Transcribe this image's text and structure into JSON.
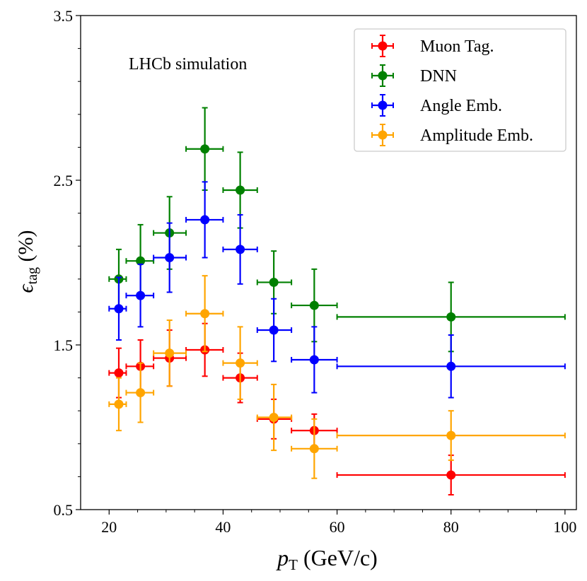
{
  "chart_data": {
    "type": "scatter",
    "title": "",
    "annotation": "LHCb simulation",
    "xlabel": {
      "symbol": "p",
      "subscript": "T",
      "unit": " (GeV/c)"
    },
    "ylabel": {
      "symbol": "ϵ",
      "subscript": "tag",
      "unit": " (%)"
    },
    "xlim": [
      15,
      102
    ],
    "ylim": [
      0.5,
      3.5
    ],
    "xticks": [
      20,
      40,
      60,
      80,
      100
    ],
    "xtick_labels": [
      "20",
      "40",
      "60",
      "80",
      "100"
    ],
    "yticks": [
      0.5,
      1.5,
      2.5,
      3.5
    ],
    "ytick_labels": [
      "0.5",
      "1.5",
      "2.5",
      "3.5"
    ],
    "grid": false,
    "legend_position": "top-right",
    "bins": [
      {
        "x": 21.7,
        "xlo": 20,
        "xhi": 23
      },
      {
        "x": 25.5,
        "xlo": 23,
        "xhi": 27.8
      },
      {
        "x": 30.6,
        "xlo": 27.8,
        "xhi": 33.5
      },
      {
        "x": 36.8,
        "xlo": 33.5,
        "xhi": 40
      },
      {
        "x": 43.0,
        "xlo": 40,
        "xhi": 46
      },
      {
        "x": 48.9,
        "xlo": 46,
        "xhi": 52
      },
      {
        "x": 56.0,
        "xlo": 52,
        "xhi": 60
      },
      {
        "x": 80.0,
        "xlo": 60,
        "xhi": 100
      }
    ],
    "series": [
      {
        "name": "Muon Tag.",
        "color": "#ff0000",
        "values": [
          1.33,
          1.37,
          1.42,
          1.47,
          1.3,
          1.05,
          0.98,
          0.71
        ],
        "yerr": [
          0.15,
          0.16,
          0.17,
          0.16,
          0.15,
          0.12,
          0.1,
          0.12
        ]
      },
      {
        "name": "DNN",
        "color": "#008000",
        "values": [
          1.9,
          2.01,
          2.18,
          2.69,
          2.44,
          1.88,
          1.74,
          1.67
        ],
        "yerr": [
          0.18,
          0.22,
          0.22,
          0.25,
          0.23,
          0.19,
          0.22,
          0.21
        ]
      },
      {
        "name": "Angle Emb.",
        "color": "#0000ff",
        "values": [
          1.72,
          1.8,
          2.03,
          2.26,
          2.08,
          1.59,
          1.41,
          1.37
        ],
        "yerr": [
          0.19,
          0.19,
          0.21,
          0.23,
          0.21,
          0.19,
          0.2,
          0.19
        ]
      },
      {
        "name": "Amplitude Emb.",
        "color": "#ffa500",
        "values": [
          1.14,
          1.21,
          1.45,
          1.69,
          1.39,
          1.06,
          0.87,
          0.95
        ],
        "yerr": [
          0.16,
          0.18,
          0.2,
          0.23,
          0.22,
          0.2,
          0.18,
          0.15
        ]
      }
    ]
  }
}
